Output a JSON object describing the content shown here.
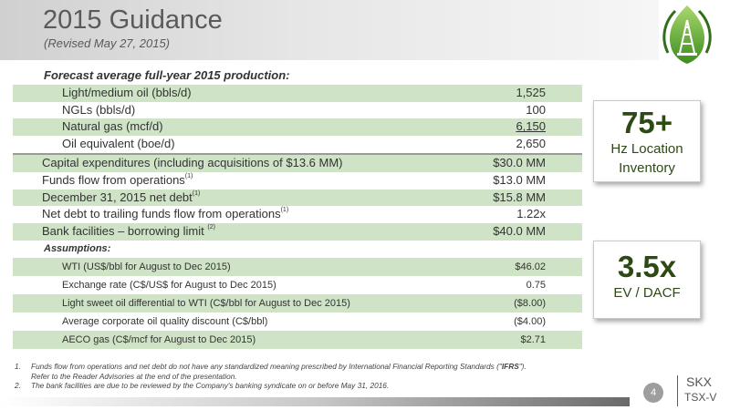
{
  "header": {
    "title": "2015 Guidance",
    "subtitle": "(Revised May 27, 2015)"
  },
  "production": {
    "heading": "Forecast average full-year 2015 production:",
    "rows": [
      {
        "label": "Light/medium oil (bbls/d)",
        "value": "1,525"
      },
      {
        "label": "NGLs (bbls/d)",
        "value": "100"
      },
      {
        "label": "Natural gas (mcf/d)",
        "value": "6,150"
      },
      {
        "label": "Oil equivalent (boe/d)",
        "value": "2,650"
      }
    ]
  },
  "financial": {
    "rows": [
      {
        "label": "Capital expenditures (including acquisitions of $13.6 MM)",
        "sup": "",
        "value": "$30.0 MM"
      },
      {
        "label": "Funds flow from operations",
        "sup": "(1)",
        "value": "$13.0 MM"
      },
      {
        "label": "December 31, 2015 net debt",
        "sup": "(1)",
        "value": "$15.8 MM"
      },
      {
        "label": "Net debt to trailing funds flow from operations",
        "sup": "(1)",
        "value": "1.22x"
      },
      {
        "label": "Bank facilities – borrowing limit ",
        "sup": "(2)",
        "value": "$40.0 MM"
      }
    ]
  },
  "assumptions": {
    "heading": "Assumptions",
    "rows": [
      {
        "label": "WTI (US$/bbl for August to Dec 2015)",
        "value": "$46.02"
      },
      {
        "label": "Exchange rate (C$/US$ for August to Dec 2015)",
        "value": "0.75"
      },
      {
        "label": "Light sweet oil differential to WTI (C$/bbl for August to Dec 2015)",
        "value": "($8.00)"
      },
      {
        "label": "Average corporate oil quality discount (C$/bbl)",
        "value": "($4.00)"
      },
      {
        "label": "AECO gas (C$/mcf for August to Dec 2015)",
        "value": "$2.71"
      }
    ]
  },
  "callouts": [
    {
      "big": "75+",
      "line1": "Hz Location",
      "line2": "Inventory"
    },
    {
      "big": "3.5x",
      "line1": "EV / DACF"
    }
  ],
  "footnotes": [
    {
      "num": "1.",
      "text": "Funds flow from operations and net debt do not have any standardized meaning prescribed by International Financial Reporting Standards (\"",
      "bold": "IFRS",
      "after": "\").",
      "line2": "Refer to the Reader Advisories at the end of the presentation."
    },
    {
      "num": "2.",
      "text": "The bank facilities are due to be reviewed by the Company's banking syndicate on or before May 31, 2016."
    }
  ],
  "footer": {
    "page": "4",
    "ticker1": "SKX",
    "ticker2": "TSX-V"
  },
  "colors": {
    "row_shade": "#cfe3c6",
    "callout_text": "#2e4a14",
    "logo_green": "#6fb43a"
  },
  "icons": {
    "logo": "oil-derrick-leaf-logo"
  }
}
